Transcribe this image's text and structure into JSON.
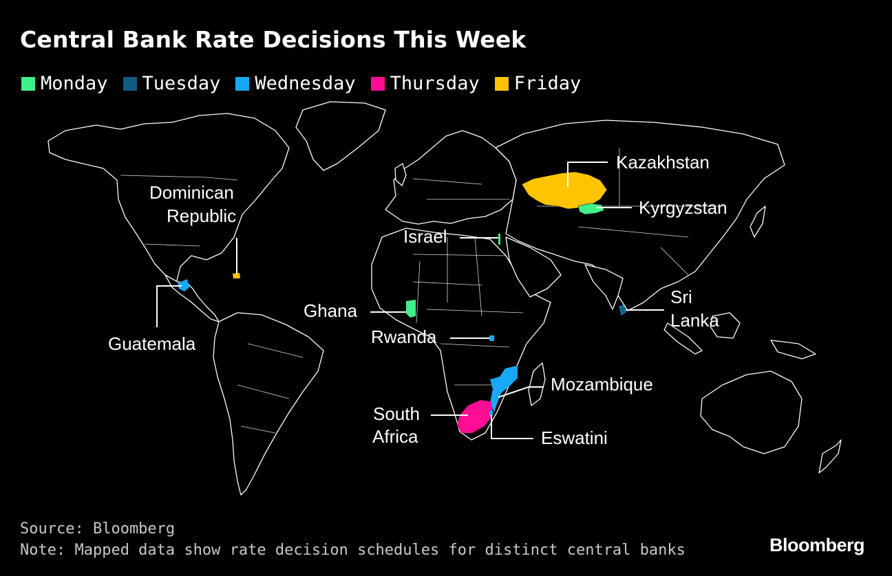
{
  "title": "Central Bank Rate Decisions This Week",
  "legend": [
    {
      "label": "Monday",
      "color": "#3ff08a"
    },
    {
      "label": "Tuesday",
      "color": "#0f5b82"
    },
    {
      "label": "Wednesday",
      "color": "#18a8f8"
    },
    {
      "label": "Thursday",
      "color": "#ff0d95"
    },
    {
      "label": "Friday",
      "color": "#ffc400"
    }
  ],
  "countries": [
    {
      "name": "Kazakhstan",
      "day": "Friday"
    },
    {
      "name": "Kyrgyzstan",
      "day": "Monday"
    },
    {
      "name": "Israel",
      "day": "Monday"
    },
    {
      "name": "Dominican Republic",
      "day": "Friday"
    },
    {
      "name": "Guatemala",
      "day": "Wednesday"
    },
    {
      "name": "Ghana",
      "day": "Monday"
    },
    {
      "name": "Rwanda",
      "day": "Wednesday"
    },
    {
      "name": "Sri Lanka",
      "day": "Tuesday"
    },
    {
      "name": "Mozambique",
      "day": "Wednesday"
    },
    {
      "name": "South Africa",
      "day": "Thursday"
    },
    {
      "name": "Eswatini",
      "day": "Wednesday"
    }
  ],
  "labels": {
    "kazakhstan": "Kazakhstan",
    "kyrgyzstan": "Kyrgyzstan",
    "israel": "Israel",
    "dominican_1": "Dominican",
    "dominican_2": "Republic",
    "guatemala": "Guatemala",
    "ghana": "Ghana",
    "rwanda": "Rwanda",
    "srilanka_1": "Sri",
    "srilanka_2": "Lanka",
    "mozambique": "Mozambique",
    "southafrica_1": "South",
    "southafrica_2": "Africa",
    "eswatini": "Eswatini"
  },
  "footer": {
    "source": "Source: Bloomberg",
    "note": "Note: Mapped data show rate decision schedules for distinct central banks"
  },
  "brand": "Bloomberg"
}
